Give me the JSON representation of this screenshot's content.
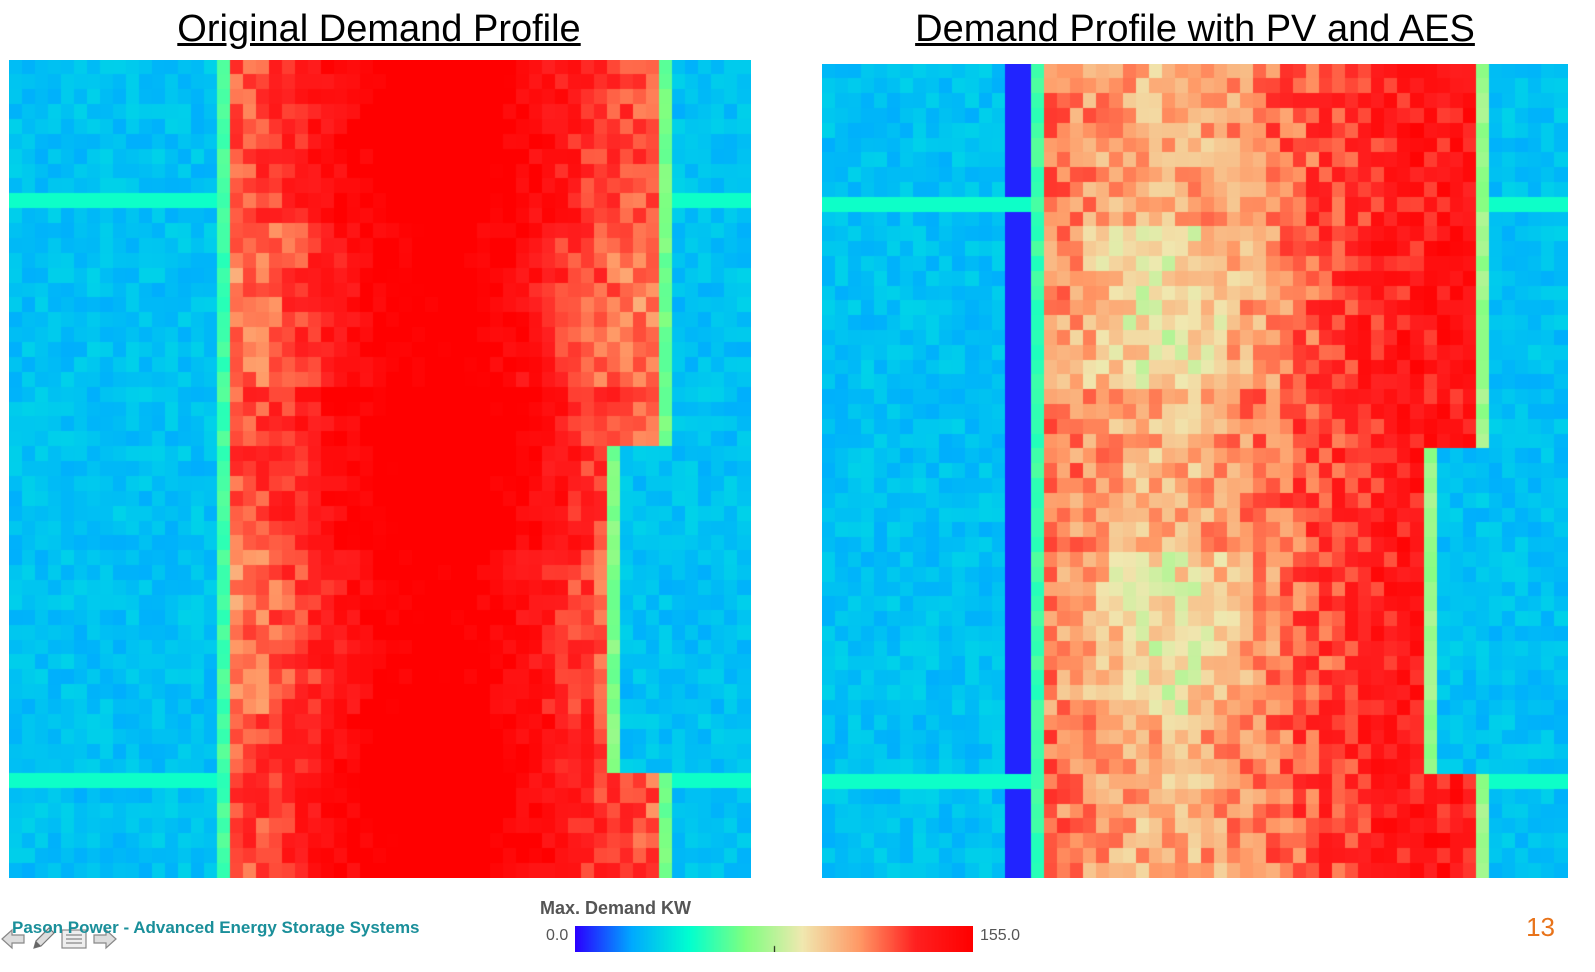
{
  "chart_data": [
    {
      "type": "heatmap",
      "title": "Original Demand Profile",
      "rows": 55,
      "cols": 57,
      "colormap": "jet-like",
      "vmin": 0.0,
      "vmax": 155.0,
      "profile_description": "low demand at night (blue), high demand during daytime (red)"
    },
    {
      "type": "heatmap",
      "title": "Demand Profile with PV and AES",
      "rows": 55,
      "cols": 57,
      "colormap": "jet-like",
      "vmin": 0.0,
      "vmax": 155.0,
      "profile_description": "daytime peaks reduced to green/orange by solar and storage"
    }
  ],
  "colorbar": {
    "label": "Max. Demand KW",
    "min_label": "0.0",
    "max_label": "155.0",
    "stops": [
      "#2a00ff",
      "#00aaff",
      "#00ffd0",
      "#80ff80",
      "#f0e8b0",
      "#ff9966",
      "#ff2020",
      "#ff0000"
    ]
  },
  "footer": {
    "company": "Pason Power - Advanced Energy Storage Systems",
    "page_number": "13"
  },
  "nav_icons": [
    "back-arrow-icon",
    "pen-icon",
    "menu-icon",
    "forward-arrow-icon"
  ]
}
